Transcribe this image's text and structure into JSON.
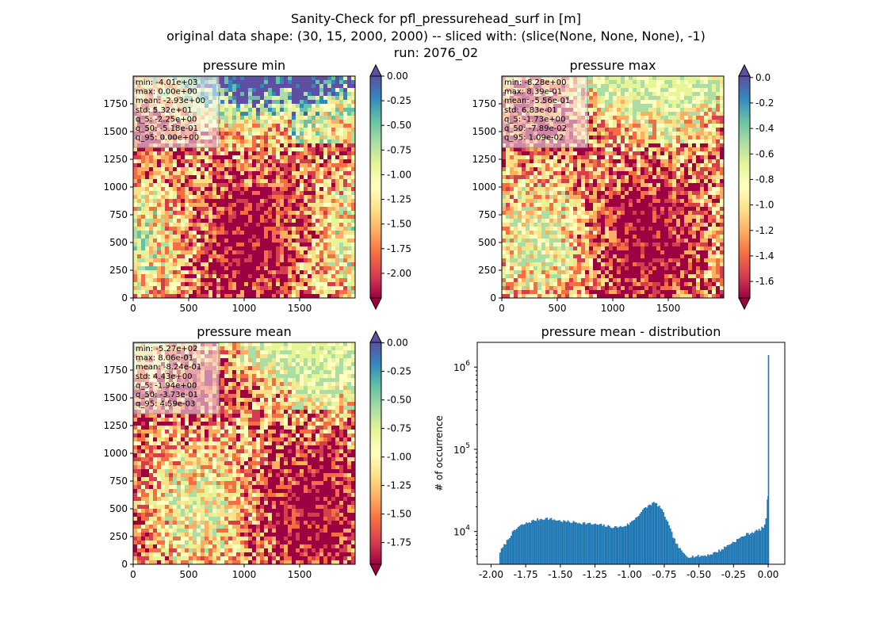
{
  "figure": {
    "title_lines": [
      "Sanity-Check for pfl_pressurehead_surf in [m]",
      "original data shape: (30, 15, 2000, 2000) -- sliced with: (slice(None, None, None), -1)",
      "run: 2076_02"
    ]
  },
  "colors": {
    "spectral": [
      "#9e0142",
      "#d53e4f",
      "#f46d43",
      "#fdae61",
      "#fee08b",
      "#ffffbf",
      "#e6f598",
      "#abdda4",
      "#66c2a5",
      "#3288bd",
      "#5e4fa2"
    ],
    "histogram_bar": "#1f77b4",
    "stats_box_bg": "#f5f5f5"
  },
  "chart_data": [
    {
      "type": "heatmap",
      "title": "pressure min",
      "xticks": [
        0,
        500,
        1000,
        1500
      ],
      "yticks": [
        0,
        250,
        500,
        750,
        1000,
        1250,
        1500,
        1750
      ],
      "xlim": [
        0,
        2000
      ],
      "ylim": [
        0,
        2000
      ],
      "colorbar": {
        "vmin": -2.25,
        "vmax": 0.0,
        "ticks": [
          "0.00",
          "-0.25",
          "-0.50",
          "-0.75",
          "-1.00",
          "-1.25",
          "-1.50",
          "-1.75",
          "-2.00"
        ],
        "tick_values": [
          0,
          -0.25,
          -0.5,
          -0.75,
          -1.0,
          -1.25,
          -1.5,
          -1.75,
          -2.0
        ],
        "extend": "both"
      },
      "stats": [
        "min: -4.01e+03",
        "max: 0.00e+00",
        "mean: -2.93e+00",
        "std: 5.32e+01",
        "q_5: -2.25e+00",
        "q_50: -5.18e-01",
        "q_95: 0.00e+00"
      ]
    },
    {
      "type": "heatmap",
      "title": "pressure max",
      "xticks": [
        0,
        500,
        1000,
        1500
      ],
      "yticks": [
        0,
        250,
        500,
        750,
        1000,
        1250,
        1500,
        1750
      ],
      "xlim": [
        0,
        2000
      ],
      "ylim": [
        0,
        2000
      ],
      "colorbar": {
        "vmin": -1.73,
        "vmax": 0.0109,
        "ticks": [
          "0.0",
          "-0.2",
          "-0.4",
          "-0.6",
          "-0.8",
          "-1.0",
          "-1.2",
          "-1.4",
          "-1.6"
        ],
        "tick_values": [
          0,
          -0.2,
          -0.4,
          -0.6,
          -0.8,
          -1.0,
          -1.2,
          -1.4,
          -1.6
        ],
        "extend": "both"
      },
      "stats": [
        "min: -8.28e+00",
        "max: 8.39e-01",
        "mean: -5.56e-01",
        "std: 6.83e-01",
        "q_5: -1.73e+00",
        "q_50: -7.89e-02",
        "q_95: 1.09e-02"
      ]
    },
    {
      "type": "heatmap",
      "title": "pressure mean",
      "xticks": [
        0,
        500,
        1000,
        1500
      ],
      "yticks": [
        0,
        250,
        500,
        750,
        1000,
        1250,
        1500,
        1750
      ],
      "xlim": [
        0,
        2000
      ],
      "ylim": [
        0,
        2000
      ],
      "colorbar": {
        "vmin": -1.94,
        "vmax": 0.00459,
        "ticks": [
          "0.00",
          "-0.25",
          "-0.50",
          "-0.75",
          "-1.00",
          "-1.25",
          "-1.50",
          "-1.75"
        ],
        "tick_values": [
          0,
          -0.25,
          -0.5,
          -0.75,
          -1.0,
          -1.25,
          -1.5,
          -1.75
        ],
        "extend": "both"
      },
      "stats": [
        "min: -5.27e+02",
        "max: 8.06e-01",
        "mean: -8.24e-01",
        "std: 4.43e+00",
        "q_5: -1.94e+00",
        "q_50: -3.73e-01",
        "q_95: 4.59e-03"
      ]
    },
    {
      "type": "bar",
      "title": "pressure mean - distribution",
      "xlabel": "",
      "ylabel": "# of occurrence",
      "yscale": "log",
      "xlim": [
        -2.1,
        0.12
      ],
      "ylim": [
        4000,
        2000000
      ],
      "xticks": [
        "-2.00",
        "-1.75",
        "-1.50",
        "-1.25",
        "-1.00",
        "-0.75",
        "-0.50",
        "-0.25",
        "0.00"
      ],
      "xtick_values": [
        -2.0,
        -1.75,
        -1.5,
        -1.25,
        -1.0,
        -0.75,
        -0.5,
        -0.25,
        0.0
      ],
      "ytick_exponents": [
        "4",
        "5",
        "6"
      ],
      "ytick_values": [
        10000,
        100000,
        1000000
      ],
      "bin_profile": [
        [
          -1.94,
          5500
        ],
        [
          -1.9,
          7000
        ],
        [
          -1.85,
          9500
        ],
        [
          -1.8,
          11500
        ],
        [
          -1.75,
          12500
        ],
        [
          -1.7,
          13500
        ],
        [
          -1.65,
          14200
        ],
        [
          -1.6,
          14500
        ],
        [
          -1.55,
          14000
        ],
        [
          -1.5,
          13500
        ],
        [
          -1.45,
          13200
        ],
        [
          -1.4,
          13000
        ],
        [
          -1.35,
          12800
        ],
        [
          -1.3,
          12500
        ],
        [
          -1.25,
          12200
        ],
        [
          -1.2,
          12000
        ],
        [
          -1.15,
          11500
        ],
        [
          -1.1,
          11300
        ],
        [
          -1.05,
          11500
        ],
        [
          -1.0,
          12500
        ],
        [
          -0.95,
          15000
        ],
        [
          -0.9,
          18500
        ],
        [
          -0.85,
          21500
        ],
        [
          -0.82,
          22500
        ],
        [
          -0.78,
          20000
        ],
        [
          -0.74,
          15000
        ],
        [
          -0.7,
          10000
        ],
        [
          -0.66,
          7000
        ],
        [
          -0.62,
          5600
        ],
        [
          -0.58,
          5000
        ],
        [
          -0.52,
          5000
        ],
        [
          -0.46,
          5100
        ],
        [
          -0.4,
          5400
        ],
        [
          -0.34,
          6000
        ],
        [
          -0.28,
          7000
        ],
        [
          -0.22,
          8000
        ],
        [
          -0.16,
          9200
        ],
        [
          -0.1,
          10000
        ],
        [
          -0.06,
          10500
        ],
        [
          -0.03,
          11500
        ],
        [
          -0.015,
          14000
        ],
        [
          -0.008,
          20000
        ],
        [
          -0.004,
          27000
        ],
        [
          0.0,
          1400000
        ]
      ]
    }
  ]
}
